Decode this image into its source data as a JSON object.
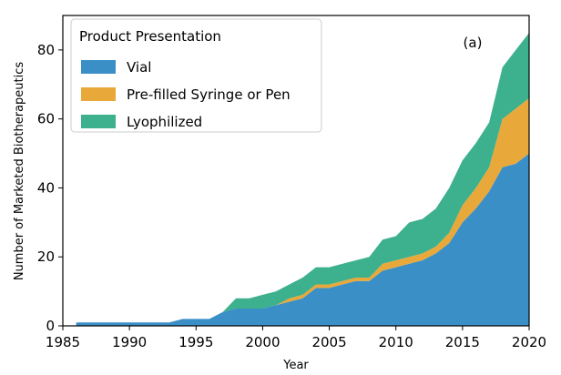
{
  "chart_data": {
    "type": "area",
    "stacked": true,
    "x": [
      1986,
      1987,
      1988,
      1989,
      1990,
      1991,
      1992,
      1993,
      1994,
      1995,
      1996,
      1997,
      1998,
      1999,
      2000,
      2001,
      2002,
      2003,
      2004,
      2005,
      2006,
      2007,
      2008,
      2009,
      2010,
      2011,
      2012,
      2013,
      2014,
      2015,
      2016,
      2017,
      2018,
      2019,
      2020
    ],
    "series": [
      {
        "name": "Vial",
        "color": "#3a8fc7",
        "values": [
          1,
          1,
          1,
          1,
          1,
          1,
          1,
          1,
          2,
          2,
          2,
          4,
          5,
          5,
          5,
          6,
          7,
          8,
          11,
          11,
          12,
          13,
          13,
          16,
          17,
          18,
          19,
          21,
          24,
          30,
          34,
          39,
          46,
          47,
          50
        ]
      },
      {
        "name": "Pre-filled Syringe or Pen",
        "color": "#e9a83a",
        "values": [
          0,
          0,
          0,
          0,
          0,
          0,
          0,
          0,
          0,
          0,
          0,
          0,
          0,
          0,
          0,
          0,
          1,
          1,
          1,
          1,
          1,
          1,
          1,
          2,
          2,
          2,
          2,
          2,
          3,
          5,
          6,
          7,
          14,
          16,
          16
        ]
      },
      {
        "name": "Lyophilized",
        "color": "#3db08d",
        "values": [
          0,
          0,
          0,
          0,
          0,
          0,
          0,
          0,
          0,
          0,
          0,
          0,
          3,
          3,
          4,
          4,
          4,
          5,
          5,
          5,
          5,
          5,
          6,
          7,
          7,
          10,
          10,
          11,
          13,
          13,
          13,
          13,
          15,
          17,
          19
        ]
      }
    ],
    "xlabel": "Year",
    "ylabel": "Number of Marketed Biotherapeutics",
    "xlim": [
      1985,
      2020
    ],
    "ylim": [
      0,
      90
    ],
    "xticks": [
      1985,
      1990,
      1995,
      2000,
      2005,
      2010,
      2015,
      2020
    ],
    "yticks": [
      0,
      20,
      40,
      60,
      80
    ],
    "legend_title": "Product Presentation",
    "legend_position": "top-left",
    "annotation": "(a)",
    "grid": false
  }
}
